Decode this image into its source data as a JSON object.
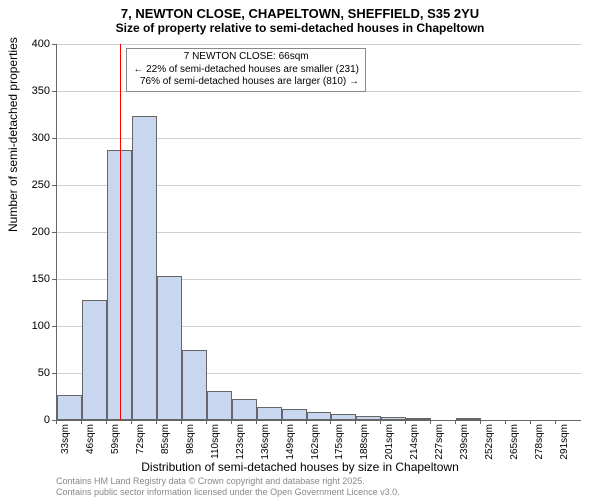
{
  "chart": {
    "type": "histogram",
    "title_main": "7, NEWTON CLOSE, CHAPELTOWN, SHEFFIELD, S35 2YU",
    "title_sub": "Size of property relative to semi-detached houses in Chapeltown",
    "title_fontsize_main": 13,
    "title_fontsize_sub": 12,
    "y_axis_label": "Number of semi-detached properties",
    "x_axis_label": "Distribution of semi-detached houses by size in Chapeltown",
    "axis_label_fontsize": 12,
    "ylim": [
      0,
      400
    ],
    "ytick_step": 50,
    "yticks": [
      0,
      50,
      100,
      150,
      200,
      250,
      300,
      350,
      400
    ],
    "x_categories": [
      "33sqm",
      "46sqm",
      "59sqm",
      "72sqm",
      "85sqm",
      "98sqm",
      "110sqm",
      "123sqm",
      "136sqm",
      "149sqm",
      "162sqm",
      "175sqm",
      "188sqm",
      "201sqm",
      "214sqm",
      "227sqm",
      "239sqm",
      "252sqm",
      "265sqm",
      "278sqm",
      "291sqm"
    ],
    "values": [
      27,
      128,
      287,
      323,
      153,
      75,
      31,
      22,
      14,
      12,
      8,
      6,
      4,
      3,
      2,
      1,
      2,
      1,
      0,
      0,
      1
    ],
    "bar_fill": "#c9d6f0",
    "bar_border": "#666666",
    "grid_color": "#d0d0d0",
    "background_color": "#ffffff",
    "x_tick_fontsize": 10,
    "y_tick_fontsize": 11,
    "marker": {
      "value_sqm": 66,
      "color": "#ff0000",
      "width": 1
    },
    "annotation": {
      "line1": "7 NEWTON CLOSE: 66sqm",
      "line2": "← 22% of semi-detached houses are smaller (231)",
      "line3": "76% of semi-detached houses are larger (810) →",
      "border_color": "#888888",
      "bg_color": "#ffffff",
      "fontsize": 10
    },
    "footer_line1": "Contains HM Land Registry data © Crown copyright and database right 2025.",
    "footer_line2": "Contains public sector information licensed under the Open Government Licence v3.0.",
    "footer_color": "#888888",
    "footer_fontsize": 9
  }
}
